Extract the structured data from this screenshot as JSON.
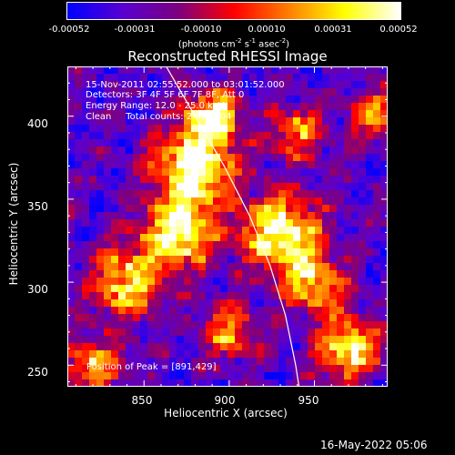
{
  "colorbar": {
    "tick_labels": [
      "-0.00052",
      "-0.00031",
      "-0.00010",
      "0.00010",
      "0.00031",
      "0.00052"
    ],
    "tick_values": [
      -0.00052,
      -0.00031,
      -0.0001,
      0.0001,
      0.00031,
      0.00052
    ],
    "range": [
      -0.00052,
      0.00052
    ],
    "units": {
      "prefix": "(photons cm",
      "exp1": "-2",
      "mid1": " s",
      "exp2": "-1",
      "mid2": " asec",
      "exp3": "-2",
      "suffix": ")"
    },
    "colors": [
      "#0000ff",
      "#5a00d0",
      "#7d0080",
      "#ff0000",
      "#ff8000",
      "#ffff00",
      "#ffffff"
    ]
  },
  "chart_data": {
    "type": "heatmap",
    "title": "Reconstructed RHESSI Image",
    "xlabel": "Heliocentric X (arcsec)",
    "ylabel": "Heliocentric Y (arcsec)",
    "xlim": [
      805,
      993
    ],
    "ylim": [
      237,
      430
    ],
    "xticks": [
      850,
      900,
      950
    ],
    "yticks": [
      250,
      300,
      350,
      400
    ],
    "info_lines": [
      "15-Nov-2011 02:55:52.000 to 03:01:52.000",
      "Detectors: 3F 4F 5F 6F 7F 8F, Att 0",
      "Energy Range: 12.0 - 25.0 keV",
      "Clean     Total counts: 2.09E+04"
    ],
    "peak_label": "Position of Peak = [891,429]",
    "peak_position": [
      891,
      429
    ],
    "limb_curve": [
      [
        863,
        430
      ],
      [
        880,
        400
      ],
      [
        897,
        370
      ],
      [
        912,
        340
      ],
      [
        924,
        310
      ],
      [
        933,
        280
      ],
      [
        939,
        250
      ],
      [
        941,
        237
      ]
    ],
    "hot_regions": [
      {
        "x": 880,
        "y": 370,
        "intensity": 0.95,
        "radius": 22
      },
      {
        "x": 870,
        "y": 330,
        "intensity": 0.85,
        "radius": 20
      },
      {
        "x": 890,
        "y": 400,
        "intensity": 0.8,
        "radius": 15
      },
      {
        "x": 840,
        "y": 300,
        "intensity": 0.7,
        "radius": 20
      },
      {
        "x": 930,
        "y": 330,
        "intensity": 0.85,
        "radius": 22
      },
      {
        "x": 950,
        "y": 300,
        "intensity": 0.6,
        "radius": 18
      },
      {
        "x": 970,
        "y": 260,
        "intensity": 0.75,
        "radius": 18
      },
      {
        "x": 940,
        "y": 390,
        "intensity": 0.55,
        "radius": 15
      },
      {
        "x": 820,
        "y": 250,
        "intensity": 0.6,
        "radius": 16
      },
      {
        "x": 900,
        "y": 270,
        "intensity": 0.5,
        "radius": 16
      },
      {
        "x": 985,
        "y": 400,
        "intensity": 0.55,
        "radius": 14
      }
    ]
  },
  "datestamp": "16-May-2022 05:06"
}
